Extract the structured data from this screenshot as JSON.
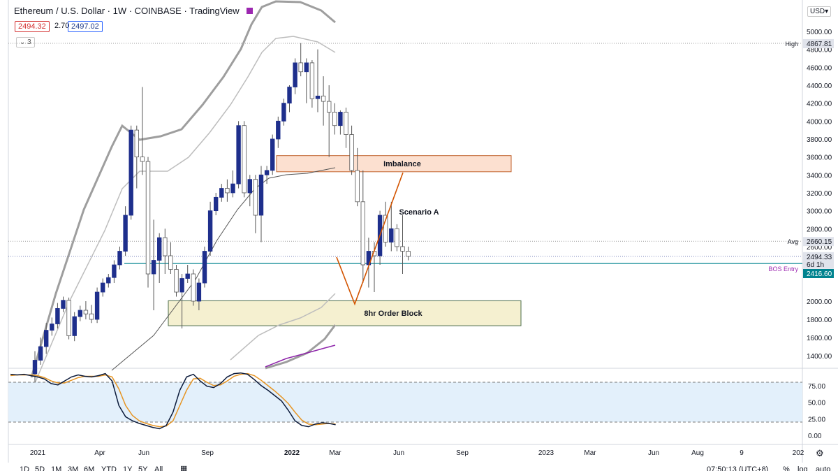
{
  "header": {
    "title": "Ethereum / U.S. Dollar · 1W · COINBASE · TradingView",
    "sell_price": "2494.32",
    "spread": "2.70",
    "buy_price": "2497.02",
    "indicators_count": "3",
    "currency": "USD",
    "flag_color": "#9c27b0"
  },
  "bottom_bar": {
    "ranges": [
      "1D",
      "5D",
      "1M",
      "3M",
      "6M",
      "YTD",
      "1Y",
      "5Y",
      "All"
    ],
    "calendar_icon": "calendar-icon",
    "time": "07:50:13 (UTC+8)",
    "percent": "%",
    "log": "log",
    "auto": "auto"
  },
  "chart_data": {
    "type": "candlestick",
    "symbol": "ETH/USD",
    "interval": "1W",
    "ylim": [
      1300,
      5300
    ],
    "y_ticks": [
      "5000.00",
      "4800.00",
      "4600.00",
      "4400.00",
      "4200.00",
      "4000.00",
      "3800.00",
      "3600.00",
      "3400.00",
      "3200.00",
      "3000.00",
      "2800.00",
      "2600.00",
      "2000.00",
      "1800.00",
      "1600.00",
      "1400.00"
    ],
    "x_ticks": [
      "2021",
      "Apr",
      "Jun",
      "Sep",
      "2022",
      "Mar",
      "Jun",
      "Sep",
      "2023",
      "Mar",
      "Jun",
      "Aug",
      "9",
      "202"
    ],
    "colors": {
      "up": "#1e2f8c",
      "down": "#ffffff",
      "wick": "#555555",
      "outer_band": "#9e9e9e",
      "inner_band": "#bdbdbd",
      "mid_band": "#555555",
      "sma": "#8e24aa",
      "scenario": "#d35400",
      "bos": "#00838f"
    },
    "candles": [
      {
        "o": 1200,
        "h": 1450,
        "l": 1100,
        "c": 1350
      },
      {
        "o": 1350,
        "h": 1600,
        "l": 1300,
        "c": 1500
      },
      {
        "o": 1500,
        "h": 1760,
        "l": 1420,
        "c": 1680
      },
      {
        "o": 1680,
        "h": 1820,
        "l": 1620,
        "c": 1750
      },
      {
        "o": 1750,
        "h": 1980,
        "l": 1700,
        "c": 1920
      },
      {
        "o": 1920,
        "h": 2050,
        "l": 1880,
        "c": 2010
      },
      {
        "o": 2010,
        "h": 2040,
        "l": 1580,
        "c": 1620
      },
      {
        "o": 1620,
        "h": 1880,
        "l": 1560,
        "c": 1830
      },
      {
        "o": 1830,
        "h": 1950,
        "l": 1780,
        "c": 1900
      },
      {
        "o": 1900,
        "h": 2000,
        "l": 1800,
        "c": 1860
      },
      {
        "o": 1860,
        "h": 1960,
        "l": 1760,
        "c": 1800
      },
      {
        "o": 1800,
        "h": 2150,
        "l": 1760,
        "c": 2100
      },
      {
        "o": 2100,
        "h": 2250,
        "l": 2050,
        "c": 2200
      },
      {
        "o": 2200,
        "h": 2300,
        "l": 2150,
        "c": 2260
      },
      {
        "o": 2260,
        "h": 2450,
        "l": 2200,
        "c": 2400
      },
      {
        "o": 2400,
        "h": 2600,
        "l": 2350,
        "c": 2550
      },
      {
        "o": 2550,
        "h": 3050,
        "l": 2500,
        "c": 2950
      },
      {
        "o": 2950,
        "h": 3950,
        "l": 2900,
        "c": 3900
      },
      {
        "o": 3900,
        "h": 3950,
        "l": 3250,
        "c": 3600
      },
      {
        "o": 3600,
        "h": 4380,
        "l": 3400,
        "c": 3550
      },
      {
        "o": 3550,
        "h": 3600,
        "l": 2150,
        "c": 2300
      },
      {
        "o": 2300,
        "h": 2900,
        "l": 1900,
        "c": 2450
      },
      {
        "o": 2450,
        "h": 2750,
        "l": 2200,
        "c": 2700
      },
      {
        "o": 2700,
        "h": 2800,
        "l": 2300,
        "c": 2500
      },
      {
        "o": 2500,
        "h": 2650,
        "l": 2300,
        "c": 2350
      },
      {
        "o": 2350,
        "h": 2400,
        "l": 2050,
        "c": 2100
      },
      {
        "o": 2100,
        "h": 2300,
        "l": 1700,
        "c": 2250
      },
      {
        "o": 2250,
        "h": 2400,
        "l": 2200,
        "c": 2300
      },
      {
        "o": 2300,
        "h": 2350,
        "l": 1950,
        "c": 2000
      },
      {
        "o": 2000,
        "h": 2250,
        "l": 1900,
        "c": 2200
      },
      {
        "o": 2200,
        "h": 2600,
        "l": 2150,
        "c": 2550
      },
      {
        "o": 2550,
        "h": 3100,
        "l": 2500,
        "c": 3000
      },
      {
        "o": 3000,
        "h": 3200,
        "l": 2950,
        "c": 3150
      },
      {
        "o": 3150,
        "h": 3300,
        "l": 3100,
        "c": 3250
      },
      {
        "o": 3250,
        "h": 3350,
        "l": 3100,
        "c": 3200
      },
      {
        "o": 3200,
        "h": 3450,
        "l": 3150,
        "c": 3300
      },
      {
        "o": 3300,
        "h": 4000,
        "l": 3250,
        "c": 3950
      },
      {
        "o": 3950,
        "h": 4000,
        "l": 3150,
        "c": 3200
      },
      {
        "o": 3200,
        "h": 3400,
        "l": 3050,
        "c": 3350
      },
      {
        "o": 3350,
        "h": 3400,
        "l": 2750,
        "c": 2950
      },
      {
        "o": 2950,
        "h": 3500,
        "l": 2650,
        "c": 3400
      },
      {
        "o": 3400,
        "h": 3500,
        "l": 3300,
        "c": 3450
      },
      {
        "o": 3450,
        "h": 3850,
        "l": 3400,
        "c": 3800
      },
      {
        "o": 3800,
        "h": 4050,
        "l": 3700,
        "c": 4000
      },
      {
        "o": 4000,
        "h": 4250,
        "l": 3950,
        "c": 4200
      },
      {
        "o": 4200,
        "h": 4400,
        "l": 4100,
        "c": 4380
      },
      {
        "o": 4380,
        "h": 4700,
        "l": 4300,
        "c": 4650
      },
      {
        "o": 4650,
        "h": 4870,
        "l": 4500,
        "c": 4550
      },
      {
        "o": 4550,
        "h": 4700,
        "l": 4200,
        "c": 4650
      },
      {
        "o": 4650,
        "h": 4680,
        "l": 4150,
        "c": 4250
      },
      {
        "o": 4250,
        "h": 4800,
        "l": 4100,
        "c": 4280
      },
      {
        "o": 4280,
        "h": 4500,
        "l": 3950,
        "c": 4220
      },
      {
        "o": 4220,
        "h": 4400,
        "l": 3600,
        "c": 4100
      },
      {
        "o": 4100,
        "h": 4200,
        "l": 3850,
        "c": 3950
      },
      {
        "o": 3950,
        "h": 4120,
        "l": 3850,
        "c": 4100
      },
      {
        "o": 4100,
        "h": 4150,
        "l": 3700,
        "c": 3850
      },
      {
        "o": 3850,
        "h": 3950,
        "l": 3400,
        "c": 3450
      },
      {
        "o": 3450,
        "h": 3700,
        "l": 3050,
        "c": 3100
      },
      {
        "o": 3100,
        "h": 3450,
        "l": 2200,
        "c": 2400
      },
      {
        "o": 2400,
        "h": 2700,
        "l": 2150,
        "c": 2550
      },
      {
        "o": 2550,
        "h": 2650,
        "l": 2100,
        "c": 2500
      },
      {
        "o": 2500,
        "h": 3000,
        "l": 2400,
        "c": 2950
      },
      {
        "o": 2950,
        "h": 3100,
        "l": 2600,
        "c": 2650
      },
      {
        "o": 2650,
        "h": 3100,
        "l": 2550,
        "c": 2800
      },
      {
        "o": 2800,
        "h": 2850,
        "l": 2550,
        "c": 2600
      },
      {
        "o": 2600,
        "h": 2950,
        "l": 2300,
        "c": 2550
      },
      {
        "o": 2550,
        "h": 2600,
        "l": 2450,
        "c": 2494
      }
    ],
    "annotations": {
      "imbalance_zone": {
        "label": "Imbalance",
        "top": 3615,
        "bottom": 3435
      },
      "order_block_zone": {
        "label": "8hr Order Block",
        "top": 2005,
        "bottom": 1730
      },
      "scenario_label": "Scenario A",
      "bos_level": {
        "label": "BOS Entry",
        "value": 2416.6
      },
      "high_level": {
        "label": "High",
        "value": 4867.81
      },
      "avg_level": {
        "label": "Avg",
        "value": 2660.15
      },
      "last_price": {
        "value": "2494.33",
        "countdown": "6d 1h"
      },
      "bos_price": "2416.60",
      "high_price": "4867.81",
      "avg_price": "2660.15"
    },
    "oscillator": {
      "ylim": [
        0,
        100
      ],
      "y_ticks": [
        "75.00",
        "50.00",
        "25.00",
        "0.00"
      ],
      "upper_band": 80,
      "lower_band": 20,
      "k": [
        92,
        91,
        92,
        90,
        88,
        85,
        78,
        76,
        82,
        88,
        91,
        89,
        88,
        90,
        93,
        82,
        45,
        28,
        22,
        18,
        15,
        12,
        10,
        15,
        35,
        68,
        88,
        92,
        82,
        74,
        72,
        78,
        88,
        93,
        94,
        92,
        84,
        75,
        68,
        60,
        52,
        38,
        22,
        15,
        13,
        17,
        19,
        18,
        16
      ],
      "d": [
        90,
        91,
        91,
        91,
        90,
        87,
        82,
        79,
        79,
        83,
        87,
        89,
        89,
        89,
        91,
        88,
        70,
        45,
        30,
        22,
        18,
        15,
        13,
        14,
        22,
        45,
        68,
        85,
        86,
        80,
        75,
        76,
        82,
        89,
        92,
        93,
        90,
        83,
        75,
        67,
        58,
        48,
        35,
        23,
        17,
        16,
        17,
        18,
        17
      ]
    }
  }
}
